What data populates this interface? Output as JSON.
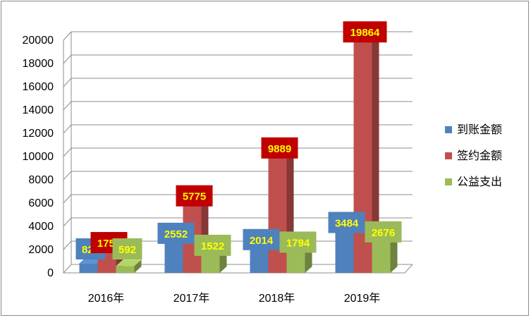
{
  "chart_data": {
    "type": "bar",
    "style": "3d-clustered-column",
    "categories": [
      "2016年",
      "2017年",
      "2018年",
      "2019年"
    ],
    "series": [
      {
        "name": "到账金额",
        "color": "#4f81bd",
        "values": [
          823,
          2552,
          2014,
          3484
        ],
        "label_bg": "#4f81bd",
        "label_fg": "#ffff00"
      },
      {
        "name": "签约金额",
        "color": "#c0504d",
        "values": [
          1755,
          5775,
          9889,
          19864
        ],
        "label_bg": "#c00000",
        "label_fg": "#ffff00"
      },
      {
        "name": "公益支出",
        "color": "#9bbb59",
        "values": [
          592,
          1522,
          1794,
          2676
        ],
        "label_bg": "#9bbb59",
        "label_fg": "#ffff00"
      }
    ],
    "ylim": [
      0,
      20000
    ],
    "yticks": [
      0,
      2000,
      4000,
      6000,
      8000,
      10000,
      12000,
      14000,
      16000,
      18000,
      20000
    ],
    "grid": true,
    "legend_position": "right"
  }
}
